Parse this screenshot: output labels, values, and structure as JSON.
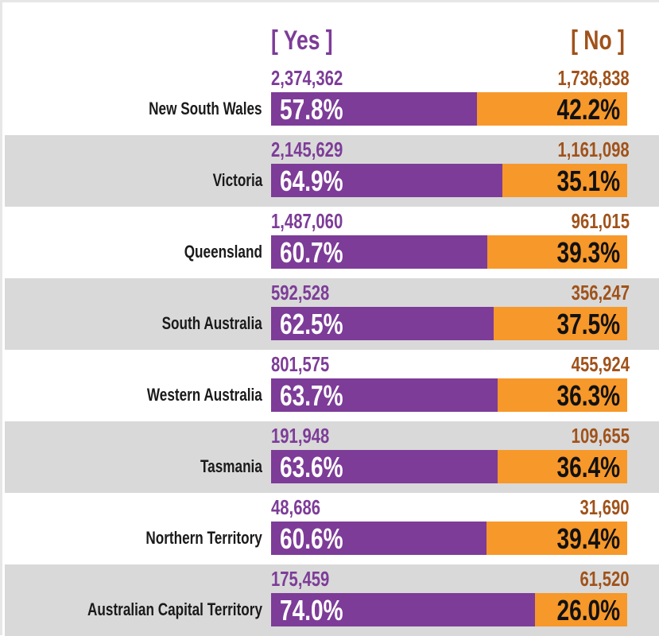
{
  "chart_data": {
    "type": "bar",
    "stacked": true,
    "orientation": "horizontal",
    "headers": {
      "yes": "[ Yes ]",
      "no": "[ No ]"
    },
    "colors": {
      "yes": "#7d3c98",
      "no": "#f7982a",
      "yes_text": "#7d3c98",
      "no_text": "#a0521a",
      "alt_row": "#d9d9d9"
    },
    "categories": [
      "New South Wales",
      "Victoria",
      "Queensland",
      "South Australia",
      "Western Australia",
      "Tasmania",
      "Northern Territory",
      "Australian Capital Territory"
    ],
    "rows": [
      {
        "label": "New South Wales",
        "yes_count": "2,374,362",
        "no_count": "1,736,838",
        "yes_pct": "57.8%",
        "no_pct": "42.2%",
        "yes": 57.8,
        "no": 42.2
      },
      {
        "label": "Victoria",
        "yes_count": "2,145,629",
        "no_count": "1,161,098",
        "yes_pct": "64.9%",
        "no_pct": "35.1%",
        "yes": 64.9,
        "no": 35.1
      },
      {
        "label": "Queensland",
        "yes_count": "1,487,060",
        "no_count": "961,015",
        "yes_pct": "60.7%",
        "no_pct": "39.3%",
        "yes": 60.7,
        "no": 39.3
      },
      {
        "label": "South Australia",
        "yes_count": "592,528",
        "no_count": "356,247",
        "yes_pct": "62.5%",
        "no_pct": "37.5%",
        "yes": 62.5,
        "no": 37.5
      },
      {
        "label": "Western Australia",
        "yes_count": "801,575",
        "no_count": "455,924",
        "yes_pct": "63.7%",
        "no_pct": "36.3%",
        "yes": 63.7,
        "no": 36.3
      },
      {
        "label": "Tasmania",
        "yes_count": "191,948",
        "no_count": "109,655",
        "yes_pct": "63.6%",
        "no_pct": "36.4%",
        "yes": 63.6,
        "no": 36.4
      },
      {
        "label": "Northern Territory",
        "yes_count": "48,686",
        "no_count": "31,690",
        "yes_pct": "60.6%",
        "no_pct": "39.4%",
        "yes": 60.6,
        "no": 39.4
      },
      {
        "label": "Australian Capital Territory",
        "yes_count": "175,459",
        "no_count": "61,520",
        "yes_pct": "74.0%",
        "no_pct": "26.0%",
        "yes": 74.0,
        "no": 26.0
      }
    ],
    "xlim": [
      0,
      100
    ]
  }
}
